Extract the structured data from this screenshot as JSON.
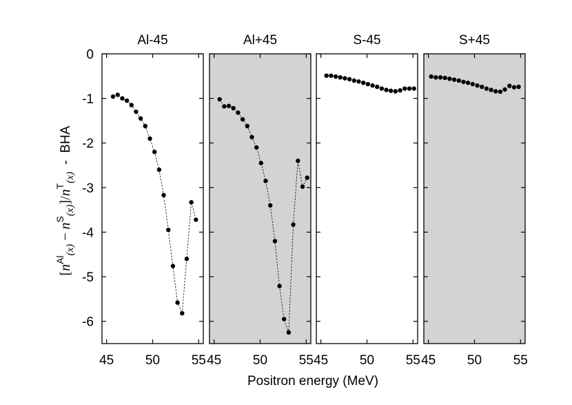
{
  "chart_data": {
    "type": "line",
    "xlabel": "Positron energy (MeV)",
    "ylabel": {
      "open": "[",
      "n1": "n",
      "sup1": "Al",
      "arg1": "(x)",
      "minus": " − ",
      "n2": "n",
      "sup2": "S",
      "arg2": "(x)",
      "close": "]/",
      "n3": "n",
      "sup3": "T",
      "arg3": "(x)",
      "suffix": "  -  BHA"
    },
    "ylim": [
      -6.5,
      0
    ],
    "yticks": [
      0,
      -1,
      -2,
      -3,
      -4,
      -5,
      -6
    ],
    "ytick_labels": [
      "0",
      "-1",
      "-2",
      "-3",
      "-4",
      "-5",
      "-6"
    ],
    "xlim": [
      44.5,
      55.5
    ],
    "xticks": [
      45,
      50,
      55
    ],
    "xtick_labels": [
      "45",
      "50",
      "55"
    ],
    "grid": false,
    "panels": [
      {
        "title": "Al-45",
        "shaded": false,
        "shade_color": "#ffffff",
        "connected": true,
        "x": [
          45.7,
          46.2,
          46.7,
          47.2,
          47.7,
          48.2,
          48.7,
          49.2,
          49.7,
          50.2,
          50.7,
          51.2,
          51.7,
          52.2,
          52.7,
          53.2,
          53.7,
          54.2,
          54.7
        ],
        "y": [
          -0.96,
          -0.92,
          -1.0,
          -1.05,
          -1.15,
          -1.3,
          -1.45,
          -1.62,
          -1.9,
          -2.2,
          -2.6,
          -3.17,
          -3.95,
          -4.76,
          -5.58,
          -5.82,
          -4.6,
          -3.33,
          -3.72
        ]
      },
      {
        "title": "Al+45",
        "shaded": true,
        "shade_color": "#d3d3d3",
        "connected": true,
        "x": [
          45.6,
          46.1,
          46.6,
          47.1,
          47.6,
          48.1,
          48.6,
          49.1,
          49.6,
          50.1,
          50.6,
          51.1,
          51.6,
          52.1,
          52.6,
          53.1,
          53.6,
          54.1,
          54.6,
          55.1
        ],
        "y": [
          -1.02,
          -1.18,
          -1.17,
          -1.22,
          -1.32,
          -1.47,
          -1.62,
          -1.87,
          -2.1,
          -2.45,
          -2.85,
          -3.4,
          -4.2,
          -5.21,
          -5.95,
          -6.25,
          -3.83,
          -2.4,
          -2.98,
          -2.78
        ]
      },
      {
        "title": "S-45",
        "shaded": false,
        "shade_color": "#ffffff",
        "connected": false,
        "x": [
          45.6,
          46.1,
          46.6,
          47.1,
          47.6,
          48.1,
          48.6,
          49.1,
          49.6,
          50.1,
          50.6,
          51.1,
          51.6,
          52.1,
          52.6,
          53.1,
          53.6,
          54.1,
          54.6,
          55.1
        ],
        "y": [
          -0.49,
          -0.49,
          -0.51,
          -0.53,
          -0.55,
          -0.57,
          -0.6,
          -0.62,
          -0.65,
          -0.68,
          -0.71,
          -0.74,
          -0.78,
          -0.81,
          -0.83,
          -0.84,
          -0.82,
          -0.78,
          -0.78,
          -0.78
        ]
      },
      {
        "title": "S+45",
        "shaded": true,
        "shade_color": "#d3d3d3",
        "connected": false,
        "x": [
          45.3,
          45.8,
          46.3,
          46.8,
          47.3,
          47.8,
          48.3,
          48.8,
          49.3,
          49.8,
          50.3,
          50.8,
          51.3,
          51.8,
          52.3,
          52.8,
          53.3,
          53.8,
          54.3,
          54.8
        ],
        "y": [
          -0.51,
          -0.53,
          -0.53,
          -0.54,
          -0.56,
          -0.58,
          -0.6,
          -0.63,
          -0.65,
          -0.68,
          -0.71,
          -0.74,
          -0.78,
          -0.81,
          -0.84,
          -0.85,
          -0.8,
          -0.72,
          -0.75,
          -0.74
        ]
      }
    ]
  }
}
